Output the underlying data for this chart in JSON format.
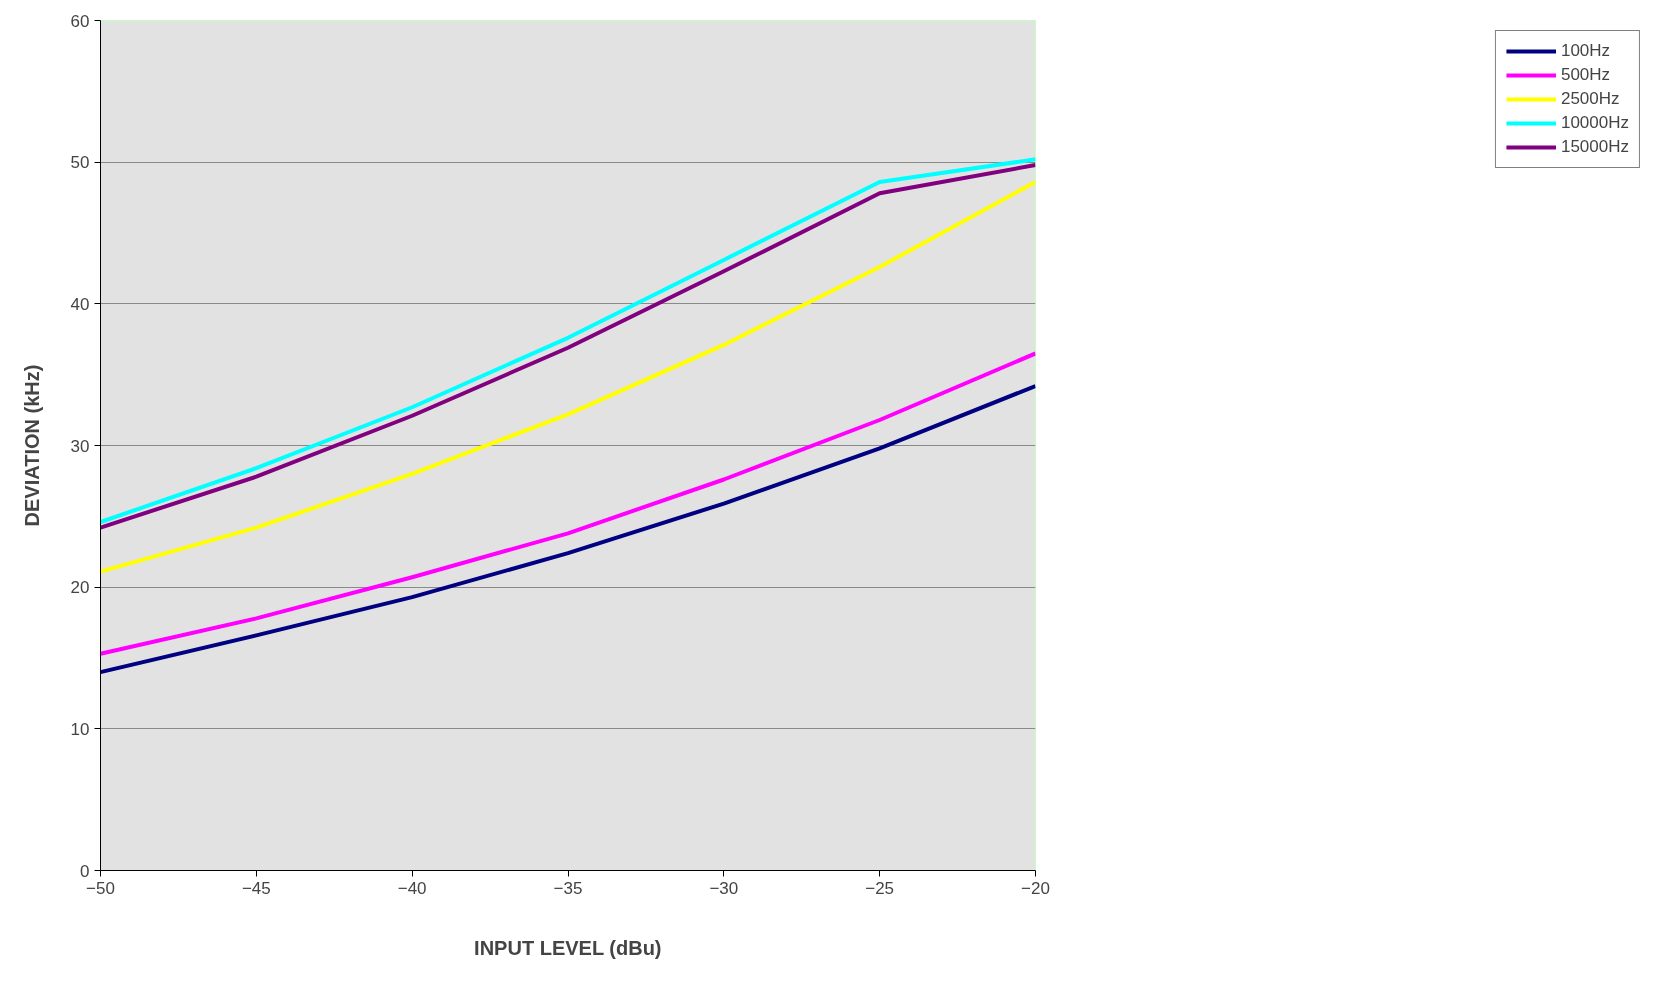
{
  "chart_data": {
    "type": "line",
    "xlabel": "INPUT LEVEL (dBu)",
    "ylabel": "DEVIATION (kHz)",
    "x": [
      -50,
      -45,
      -40,
      -35,
      -30,
      -25,
      -20
    ],
    "xlim": [
      -50,
      -20
    ],
    "xticks": [
      -50,
      -45,
      -40,
      -35,
      -30,
      -25,
      -20
    ],
    "ylim": [
      0,
      60
    ],
    "yticks": [
      0,
      10,
      20,
      30,
      40,
      50,
      60
    ],
    "grid": "y",
    "legend": "right",
    "marker": "none",
    "line_style": "solid",
    "series": [
      {
        "name": "100Hz",
        "color": "#000080",
        "values": [
          14.0,
          16.6,
          19.3,
          22.4,
          25.9,
          29.8,
          34.2
        ]
      },
      {
        "name": "500Hz",
        "color": "#ff00ff",
        "values": [
          15.3,
          17.8,
          20.7,
          23.8,
          27.6,
          31.8,
          36.5
        ]
      },
      {
        "name": "2500Hz",
        "color": "#ffff00",
        "values": [
          21.1,
          24.2,
          28.0,
          32.2,
          37.1,
          42.6,
          48.6
        ]
      },
      {
        "name": "10000Hz",
        "color": "#00ffff",
        "values": [
          24.6,
          28.4,
          32.7,
          37.6,
          43.1,
          48.6,
          50.2
        ]
      },
      {
        "name": "15000Hz",
        "color": "#800080",
        "values": [
          24.2,
          27.8,
          32.1,
          36.9,
          42.3,
          47.8,
          49.8
        ]
      }
    ]
  }
}
